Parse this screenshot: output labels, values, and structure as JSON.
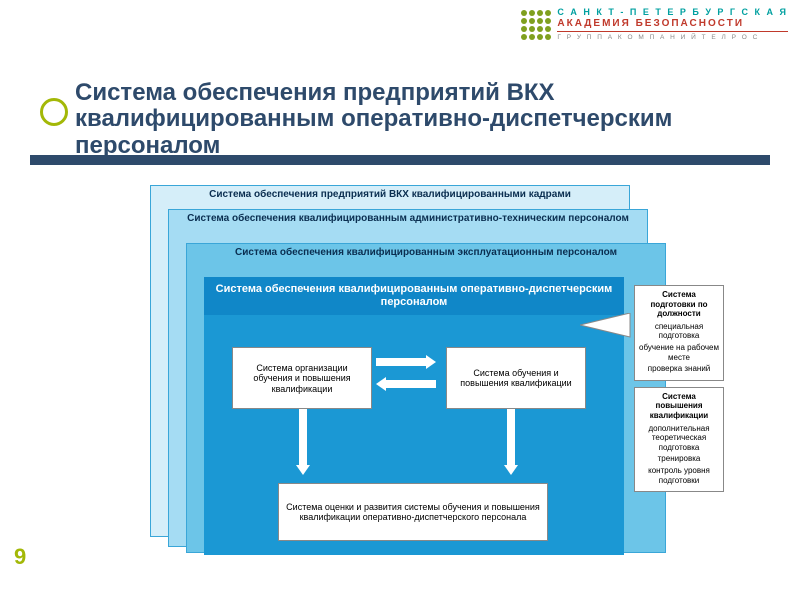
{
  "colors": {
    "accent": "#a3b807",
    "bar": "#2e4a6b",
    "panel1_bg": "#d5eef9",
    "panel2_bg": "#a5dcf3",
    "panel3_bg": "#6cc5e8",
    "main_body": "#1b98d4",
    "main_hdr": "#1087c8",
    "logo_green": "#7fa01f",
    "logo_teal": "#00a0a0",
    "logo_red": "#c0392b",
    "border": "#888888"
  },
  "logo": {
    "line1": "С А Н К Т - П Е Т Е Р Б У Р Г С К А Я",
    "line2": "АКАДЕМИЯ БЕЗОПАСНОСТИ",
    "line3": "Г Р У П П А  К О М П А Н И Й  Т Е Л Р О С"
  },
  "title": "Система обеспечения предприятий ВКХ квалифицированным оперативно-диспетчерским персоналом",
  "page_number": "9",
  "panels": {
    "p1": "Система обеспечения предприятий ВКХ квалифицированными кадрами",
    "p2": "Система обеспечения квалифицированным административно-техническим персоналом",
    "p3": "Система обеспечения квалифицированным эксплуатационным персоналом"
  },
  "main": {
    "header": "Система обеспечения квалифицированным оперативно-диспетчерским персоналом",
    "box_left": "Система организации обучения и повышения квалификации",
    "box_right": "Система обучения и повышения квалификации",
    "box_bottom": "Система оценки и развития системы обучения и повышения квалификации оперативно-диспетчерского персонала"
  },
  "side": {
    "box1": {
      "title": "Система подготовки по должности",
      "items": [
        "специальная подготовка",
        "обучение на рабочем месте",
        "проверка знаний"
      ]
    },
    "box2": {
      "title": "Система повышения квалификации",
      "items": [
        "дополнительная теоретическая подготовка",
        "тренировка",
        "контроль уровня подготовки"
      ]
    }
  }
}
